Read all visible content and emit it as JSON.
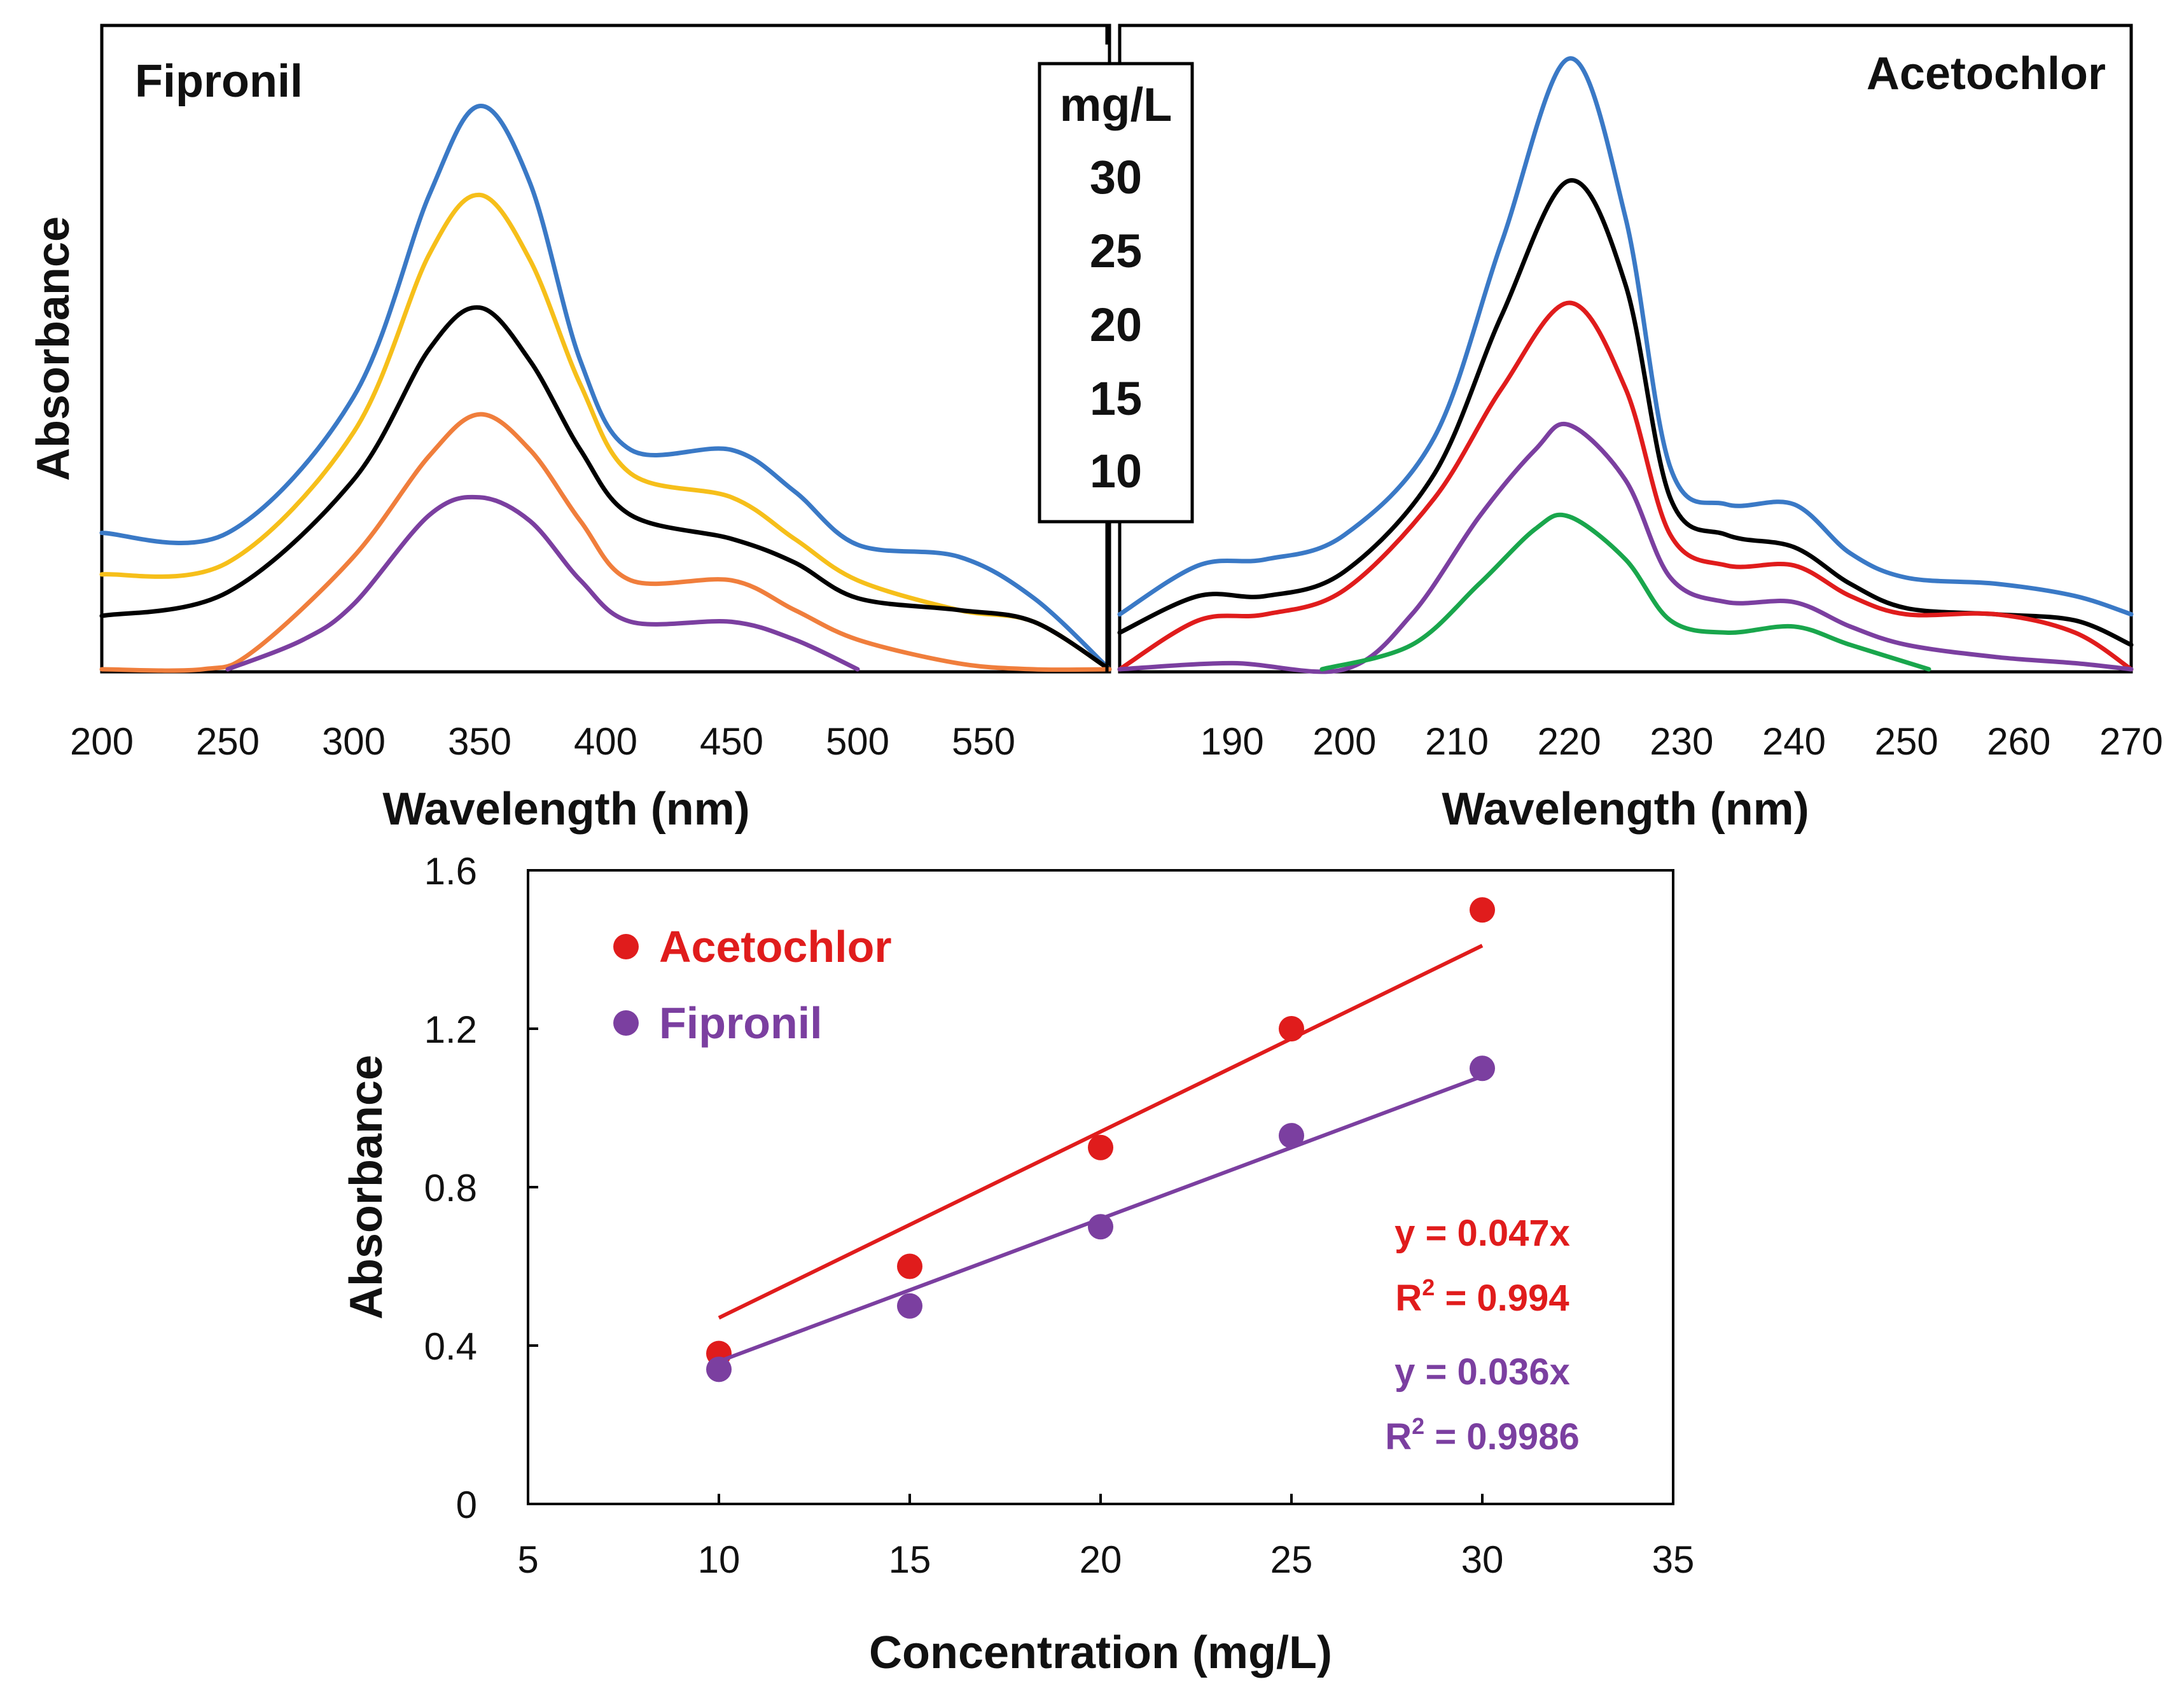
{
  "chart_data": [
    {
      "id": "fipronil-spectra",
      "type": "line",
      "title": "Fipronil",
      "xlabel": "Wavelength (nm)",
      "ylabel": "Absorbance",
      "xlim": [
        200,
        600
      ],
      "ylim": [
        0,
        1.0
      ],
      "xticks": [
        200,
        250,
        300,
        350,
        400,
        450,
        500,
        550
      ],
      "y_ticks_shown": false,
      "series": [
        {
          "name": "30",
          "color": "#3a79c6",
          "points": [
            [
              200,
              0.23
            ],
            [
              250,
              0.23
            ],
            [
              300,
              0.46
            ],
            [
              330,
              0.8
            ],
            [
              350,
              0.95
            ],
            [
              370,
              0.82
            ],
            [
              390,
              0.52
            ],
            [
              410,
              0.37
            ],
            [
              450,
              0.37
            ],
            [
              475,
              0.3
            ],
            [
              500,
              0.21
            ],
            [
              540,
              0.19
            ],
            [
              570,
              0.12
            ],
            [
              600,
              0.0
            ]
          ]
        },
        {
          "name": "25",
          "color": "#f6bf1a",
          "points": [
            [
              200,
              0.16
            ],
            [
              250,
              0.18
            ],
            [
              300,
              0.4
            ],
            [
              330,
              0.7
            ],
            [
              350,
              0.8
            ],
            [
              370,
              0.69
            ],
            [
              390,
              0.48
            ],
            [
              410,
              0.33
            ],
            [
              450,
              0.29
            ],
            [
              475,
              0.22
            ],
            [
              500,
              0.15
            ],
            [
              540,
              0.1
            ],
            [
              570,
              0.08
            ],
            [
              600,
              0.0
            ]
          ]
        },
        {
          "name": "20",
          "color": "#000000",
          "points": [
            [
              200,
              0.09
            ],
            [
              250,
              0.13
            ],
            [
              300,
              0.32
            ],
            [
              330,
              0.54
            ],
            [
              350,
              0.61
            ],
            [
              370,
              0.52
            ],
            [
              390,
              0.37
            ],
            [
              410,
              0.26
            ],
            [
              450,
              0.22
            ],
            [
              475,
              0.18
            ],
            [
              500,
              0.12
            ],
            [
              540,
              0.1
            ],
            [
              570,
              0.08
            ],
            [
              600,
              0.0
            ]
          ]
        },
        {
          "name": "15",
          "color": "#f07e3c",
          "points": [
            [
              200,
              0.0
            ],
            [
              240,
              0.0
            ],
            [
              260,
              0.03
            ],
            [
              300,
              0.19
            ],
            [
              330,
              0.36
            ],
            [
              350,
              0.43
            ],
            [
              370,
              0.37
            ],
            [
              390,
              0.25
            ],
            [
              410,
              0.15
            ],
            [
              450,
              0.15
            ],
            [
              475,
              0.1
            ],
            [
              500,
              0.05
            ],
            [
              540,
              0.01
            ],
            [
              570,
              0.0
            ],
            [
              600,
              0.0
            ]
          ]
        },
        {
          "name": "10",
          "color": "#7b3fa0",
          "points": [
            [
              250,
              0.0
            ],
            [
              280,
              0.05
            ],
            [
              300,
              0.11
            ],
            [
              330,
              0.26
            ],
            [
              350,
              0.29
            ],
            [
              370,
              0.25
            ],
            [
              390,
              0.15
            ],
            [
              410,
              0.08
            ],
            [
              450,
              0.08
            ],
            [
              475,
              0.05
            ],
            [
              500,
              0.0
            ]
          ]
        }
      ]
    },
    {
      "id": "acetochlor-spectra",
      "type": "line",
      "title": "Acetochlor",
      "xlabel": "Wavelength (nm)",
      "ylabel": "",
      "xlim": [
        180,
        270
      ],
      "ylim": [
        0,
        1.0
      ],
      "xticks": [
        190,
        200,
        210,
        220,
        230,
        240,
        250,
        260,
        270
      ],
      "y_ticks_shown": false,
      "series": [
        {
          "name": "30",
          "color": "#3a79c6",
          "points": [
            [
              180,
              0.09
            ],
            [
              187,
              0.17
            ],
            [
              193,
              0.18
            ],
            [
              200,
              0.22
            ],
            [
              208,
              0.38
            ],
            [
              214,
              0.7
            ],
            [
              220,
              1.0
            ],
            [
              225,
              0.74
            ],
            [
              229,
              0.33
            ],
            [
              234,
              0.27
            ],
            [
              240,
              0.27
            ],
            [
              245,
              0.19
            ],
            [
              250,
              0.15
            ],
            [
              258,
              0.14
            ],
            [
              265,
              0.12
            ],
            [
              270,
              0.09
            ]
          ]
        },
        {
          "name": "25",
          "color": "#000000",
          "points": [
            [
              180,
              0.06
            ],
            [
              187,
              0.12
            ],
            [
              193,
              0.12
            ],
            [
              200,
              0.16
            ],
            [
              208,
              0.32
            ],
            [
              214,
              0.58
            ],
            [
              220,
              0.8
            ],
            [
              225,
              0.63
            ],
            [
              229,
              0.28
            ],
            [
              234,
              0.22
            ],
            [
              240,
              0.2
            ],
            [
              245,
              0.14
            ],
            [
              250,
              0.1
            ],
            [
              258,
              0.09
            ],
            [
              265,
              0.08
            ],
            [
              270,
              0.04
            ]
          ]
        },
        {
          "name": "20",
          "color": "#e01c1c",
          "points": [
            [
              180,
              0.0
            ],
            [
              187,
              0.08
            ],
            [
              193,
              0.09
            ],
            [
              200,
              0.13
            ],
            [
              208,
              0.28
            ],
            [
              214,
              0.46
            ],
            [
              220,
              0.6
            ],
            [
              225,
              0.46
            ],
            [
              229,
              0.22
            ],
            [
              234,
              0.17
            ],
            [
              240,
              0.17
            ],
            [
              245,
              0.12
            ],
            [
              250,
              0.09
            ],
            [
              258,
              0.09
            ],
            [
              265,
              0.06
            ],
            [
              270,
              0.0
            ]
          ]
        },
        {
          "name": "15",
          "color": "#7b3fa0",
          "points": [
            [
              180,
              0.0
            ],
            [
              190,
              0.01
            ],
            [
              200,
              0.0
            ],
            [
              206,
              0.09
            ],
            [
              212,
              0.25
            ],
            [
              217,
              0.36
            ],
            [
              220,
              0.4
            ],
            [
              225,
              0.31
            ],
            [
              229,
              0.15
            ],
            [
              234,
              0.11
            ],
            [
              240,
              0.11
            ],
            [
              245,
              0.07
            ],
            [
              250,
              0.04
            ],
            [
              258,
              0.02
            ],
            [
              265,
              0.01
            ],
            [
              270,
              0.0
            ]
          ]
        },
        {
          "name": "10",
          "color": "#19a64c",
          "points": [
            [
              198,
              0.0
            ],
            [
              206,
              0.04
            ],
            [
              212,
              0.14
            ],
            [
              217,
              0.23
            ],
            [
              220,
              0.25
            ],
            [
              225,
              0.18
            ],
            [
              229,
              0.08
            ],
            [
              234,
              0.06
            ],
            [
              240,
              0.07
            ],
            [
              245,
              0.04
            ],
            [
              252,
              0.0
            ]
          ]
        }
      ]
    },
    {
      "id": "calibration",
      "type": "scatter",
      "title": "",
      "xlabel": "Concentration (mg/L)",
      "ylabel": "Absorbance",
      "xlim": [
        5,
        35
      ],
      "ylim": [
        0,
        1.6
      ],
      "xticks": [
        5,
        10,
        15,
        20,
        25,
        30,
        35
      ],
      "yticks": [
        0,
        0.4,
        0.8,
        1.2,
        1.6
      ],
      "series": [
        {
          "name": "Acetochlor",
          "color": "#e01c1c",
          "x": [
            10,
            15,
            20,
            25,
            30
          ],
          "y": [
            0.38,
            0.6,
            0.9,
            1.2,
            1.5
          ],
          "fit_slope": 0.047,
          "equation": "y = 0.047x",
          "r2_label": "R",
          "r2_value": " = 0.994"
        },
        {
          "name": "Fipronil",
          "color": "#7b3fa0",
          "x": [
            10,
            15,
            20,
            25,
            30
          ],
          "y": [
            0.34,
            0.5,
            0.7,
            0.93,
            1.1
          ],
          "fit_slope": 0.036,
          "equation": "y = 0.036x",
          "r2_label": "R",
          "r2_value": " = 0.9986"
        }
      ]
    }
  ],
  "legend": {
    "title": "mg/L",
    "entries": [
      "30",
      "25",
      "20",
      "15",
      "10"
    ]
  }
}
